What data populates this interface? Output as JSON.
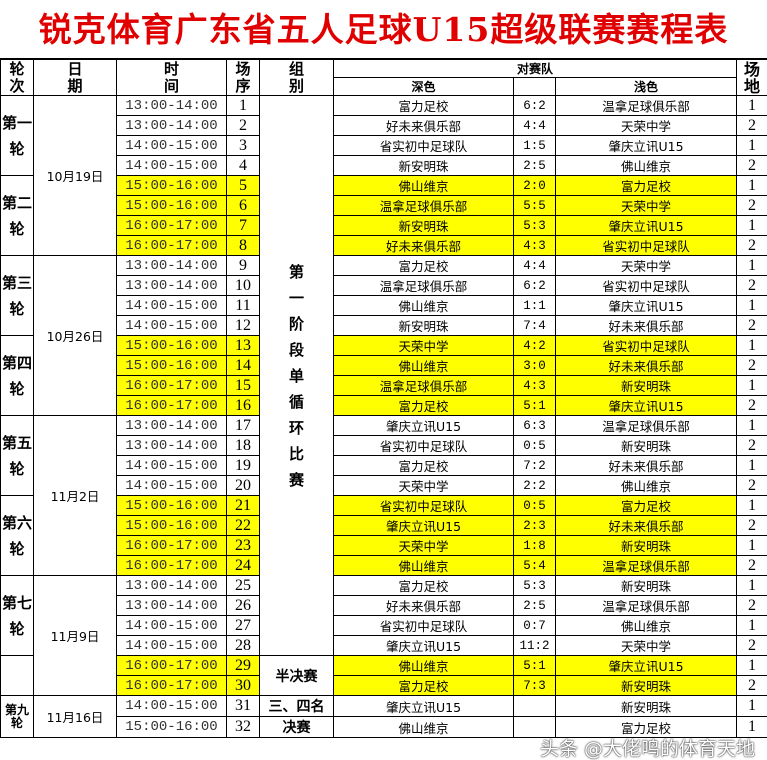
{
  "title": "锐克体育广东省五人足球U15超级联赛赛程表",
  "headers": {
    "round": "轮次",
    "date": "日期",
    "time": "时间",
    "seq": "场序",
    "group": "组别",
    "teams": "对赛队",
    "dark": "深色",
    "light": "浅色",
    "venue": "场地"
  },
  "rounds": [
    "第一轮",
    "第二轮",
    "第三轮",
    "第四轮",
    "第五轮",
    "第六轮",
    "第七轮",
    "",
    "第九轮"
  ],
  "dates": [
    "10月19日",
    "10月26日",
    "11月2日",
    "11月9日",
    "11月16日"
  ],
  "groups": [
    "第一阶段单循环比赛",
    "半决赛",
    "三、四名",
    "决赛"
  ],
  "highlight_color": "#ffff00",
  "matches": [
    {
      "time": "13:00-14:00",
      "seq": "1",
      "dark": "富力足校",
      "score": "6:2",
      "light": "温拿足球俱乐部",
      "venue": "1"
    },
    {
      "time": "13:00-14:00",
      "seq": "2",
      "dark": "好未来俱乐部",
      "score": "4:4",
      "light": "天荣中学",
      "venue": "2"
    },
    {
      "time": "14:00-15:00",
      "seq": "3",
      "dark": "省实初中足球队",
      "score": "1:5",
      "light": "肇庆立讯U15",
      "venue": "1"
    },
    {
      "time": "14:00-15:00",
      "seq": "4",
      "dark": "新安明珠",
      "score": "2:5",
      "light": "佛山维京",
      "venue": "2"
    },
    {
      "time": "15:00-16:00",
      "seq": "5",
      "dark": "佛山维京",
      "score": "2:0",
      "light": "富力足校",
      "venue": "1"
    },
    {
      "time": "15:00-16:00",
      "seq": "6",
      "dark": "温拿足球俱乐部",
      "score": "5:5",
      "light": "天荣中学",
      "venue": "2"
    },
    {
      "time": "16:00-17:00",
      "seq": "7",
      "dark": "新安明珠",
      "score": "5:3",
      "light": "肇庆立讯U15",
      "venue": "1"
    },
    {
      "time": "16:00-17:00",
      "seq": "8",
      "dark": "好未来俱乐部",
      "score": "4:3",
      "light": "省实初中足球队",
      "venue": "2"
    },
    {
      "time": "13:00-14:00",
      "seq": "9",
      "dark": "富力足校",
      "score": "4:4",
      "light": "天荣中学",
      "venue": "1"
    },
    {
      "time": "13:00-14:00",
      "seq": "10",
      "dark": "温拿足球俱乐部",
      "score": "6:2",
      "light": "省实初中足球队",
      "venue": "2"
    },
    {
      "time": "14:00-15:00",
      "seq": "11",
      "dark": "佛山维京",
      "score": "1:1",
      "light": "肇庆立讯U15",
      "venue": "1"
    },
    {
      "time": "14:00-15:00",
      "seq": "12",
      "dark": "新安明珠",
      "score": "7:4",
      "light": "好未来俱乐部",
      "venue": "2"
    },
    {
      "time": "15:00-16:00",
      "seq": "13",
      "dark": "天荣中学",
      "score": "4:2",
      "light": "省实初中足球队",
      "venue": "1"
    },
    {
      "time": "15:00-16:00",
      "seq": "14",
      "dark": "佛山维京",
      "score": "3:0",
      "light": "好未来俱乐部",
      "venue": "2"
    },
    {
      "time": "16:00-17:00",
      "seq": "15",
      "dark": "温拿足球俱乐部",
      "score": "4:3",
      "light": "新安明珠",
      "venue": "1"
    },
    {
      "time": "16:00-17:00",
      "seq": "16",
      "dark": "富力足校",
      "score": "5:1",
      "light": "肇庆立讯U15",
      "venue": "2"
    },
    {
      "time": "13:00-14:00",
      "seq": "17",
      "dark": "肇庆立讯U15",
      "score": "6:3",
      "light": "温拿足球俱乐部",
      "venue": "1"
    },
    {
      "time": "13:00-14:00",
      "seq": "18",
      "dark": "省实初中足球队",
      "score": "0:5",
      "light": "新安明珠",
      "venue": "2"
    },
    {
      "time": "14:00-15:00",
      "seq": "19",
      "dark": "富力足校",
      "score": "7:2",
      "light": "好未来俱乐部",
      "venue": "1"
    },
    {
      "time": "14:00-15:00",
      "seq": "20",
      "dark": "天荣中学",
      "score": "2:2",
      "light": "佛山维京",
      "venue": "2"
    },
    {
      "time": "15:00-16:00",
      "seq": "21",
      "dark": "省实初中足球队",
      "score": "0:5",
      "light": "富力足校",
      "venue": "1"
    },
    {
      "time": "15:00-16:00",
      "seq": "22",
      "dark": "肇庆立讯U15",
      "score": "2:3",
      "light": "好未来俱乐部",
      "venue": "2"
    },
    {
      "time": "16:00-17:00",
      "seq": "23",
      "dark": "天荣中学",
      "score": "1:8",
      "light": "新安明珠",
      "venue": "1"
    },
    {
      "time": "16:00-17:00",
      "seq": "24",
      "dark": "佛山维京",
      "score": "5:4",
      "light": "温拿足球俱乐部",
      "venue": "2"
    },
    {
      "time": "13:00-14:00",
      "seq": "25",
      "dark": "富力足校",
      "score": "5:3",
      "light": "新安明珠",
      "venue": "1"
    },
    {
      "time": "13:00-14:00",
      "seq": "26",
      "dark": "好未来俱乐部",
      "score": "2:5",
      "light": "温拿足球俱乐部",
      "venue": "2"
    },
    {
      "time": "14:00-15:00",
      "seq": "27",
      "dark": "省实初中足球队",
      "score": "0:7",
      "light": "佛山维京",
      "venue": "1"
    },
    {
      "time": "14:00-15:00",
      "seq": "28",
      "dark": "肇庆立讯U15",
      "score": "11:2",
      "light": "天荣中学",
      "venue": "2"
    },
    {
      "time": "16:00-17:00",
      "seq": "29",
      "dark": "佛山维京",
      "score": "5:1",
      "light": "肇庆立讯U15",
      "venue": "1"
    },
    {
      "time": "16:00-17:00",
      "seq": "30",
      "dark": "富力足校",
      "score": "7:3",
      "light": "新安明珠",
      "venue": "2"
    },
    {
      "time": "14:00-15:00",
      "seq": "31",
      "dark": "肇庆立讯U15",
      "score": "",
      "light": "新安明珠",
      "venue": "1"
    },
    {
      "time": "15:00-16:00",
      "seq": "32",
      "dark": "佛山维京",
      "score": "",
      "light": "富力足校",
      "venue": "1"
    }
  ],
  "watermark": "头条 @大佬鸣的体育天地"
}
